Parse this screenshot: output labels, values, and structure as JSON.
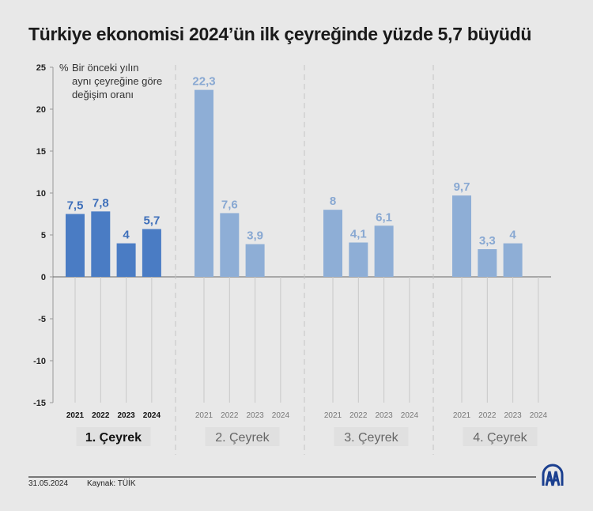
{
  "title": "Türkiye ekonomisi 2024’ün ilk çeyreğinde yüzde 5,7 büyüdü",
  "footer": {
    "date": "31.05.2024",
    "source": "Kaynak: TÜİK",
    "logo": "AA"
  },
  "chart_data": {
    "type": "bar",
    "ylabel_lines": [
      "%",
      "Bir önceki yılın",
      "aynı çeyreğine göre",
      "değişim oranı"
    ],
    "ylim": [
      -15,
      25
    ],
    "yticks": [
      25,
      20,
      15,
      10,
      5,
      0,
      -5,
      -10,
      -15
    ],
    "groups": [
      "1. Çeyrek",
      "2. Çeyrek",
      "3. Çeyrek",
      "4. Çeyrek"
    ],
    "categories": [
      "2021",
      "2022",
      "2023",
      "2024"
    ],
    "values": [
      [
        7.5,
        7.8,
        4,
        5.7
      ],
      [
        22.3,
        7.6,
        3.9,
        null
      ],
      [
        8,
        4.1,
        6.1,
        null
      ],
      [
        9.7,
        3.3,
        4,
        null
      ]
    ],
    "labels": [
      [
        "7,5",
        "7,8",
        "4",
        "5,7"
      ],
      [
        "22,3",
        "7,6",
        "3,9",
        ""
      ],
      [
        "8",
        "4,1",
        "6,1",
        ""
      ],
      [
        "9,7",
        "3,3",
        "4",
        ""
      ]
    ],
    "highlight_group": 0,
    "colors": {
      "highlight": "#4a7cc4",
      "highlight_label": "#3e6fba",
      "normal": "#8eaed6",
      "normal_label": "#88a8d2",
      "axis": "#999"
    },
    "grid": false
  }
}
